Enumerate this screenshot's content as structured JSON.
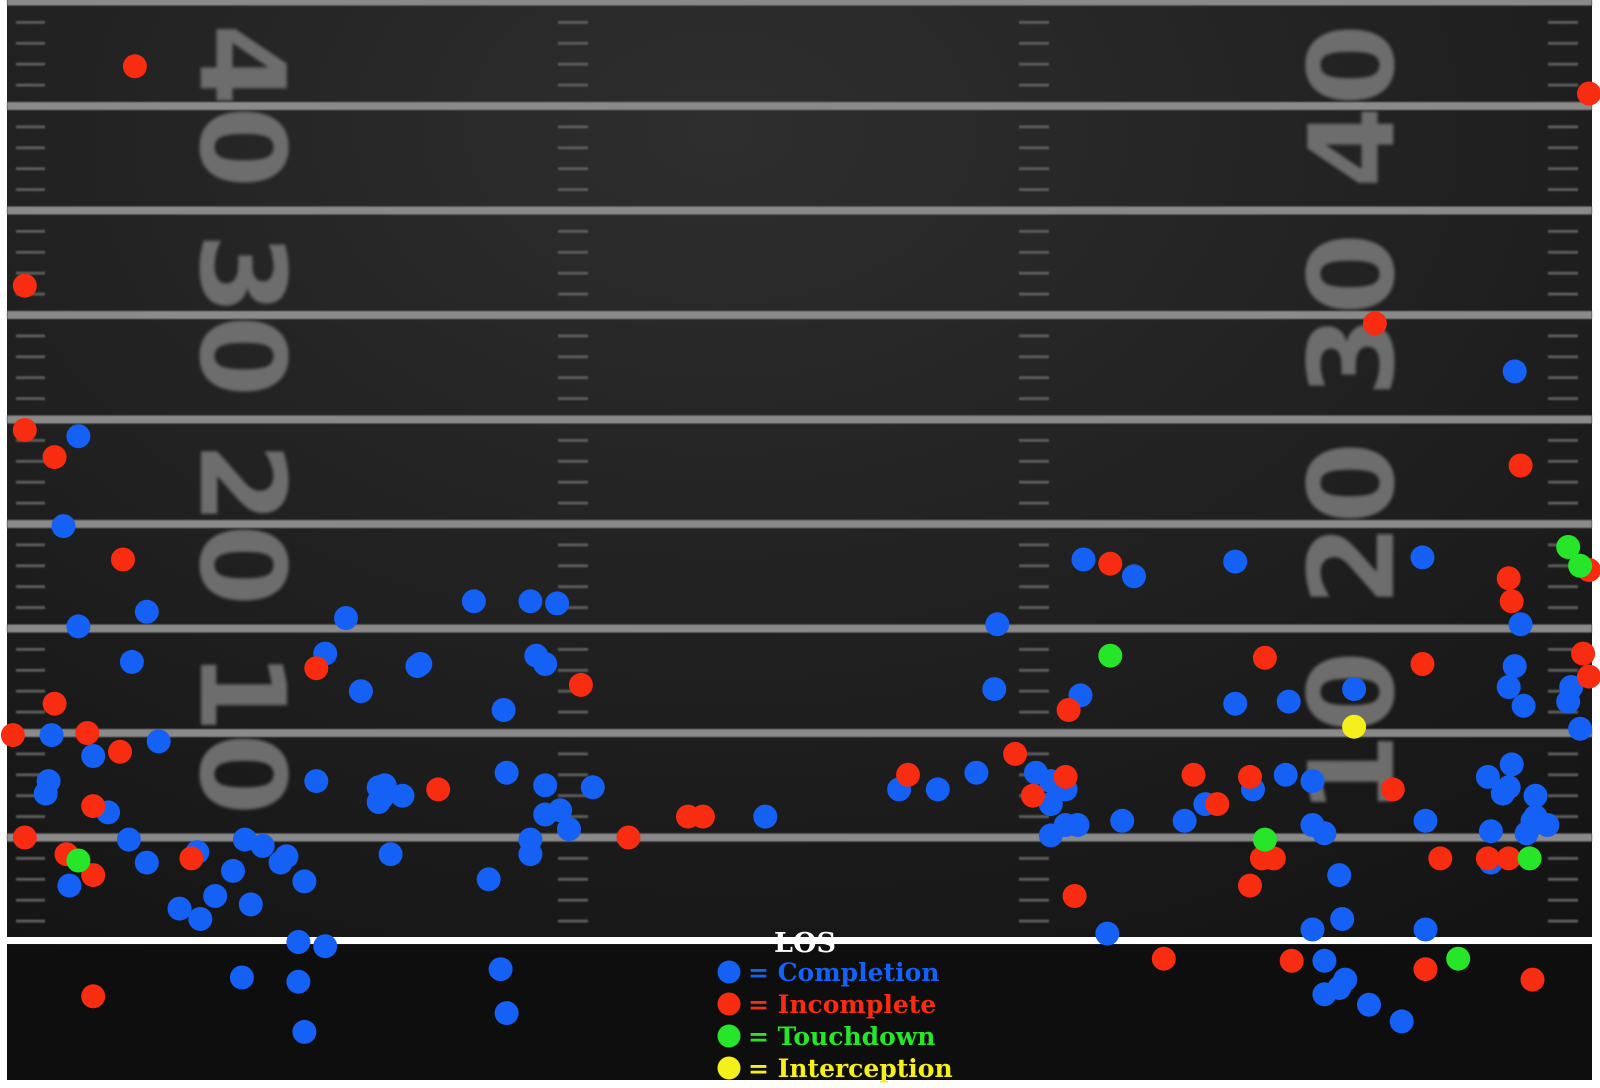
{
  "chart_data": {
    "type": "scatter",
    "title": "",
    "xlabel": "",
    "ylabel": "",
    "xlim": [
      0,
      53.3
    ],
    "ylim": [
      -5,
      45
    ],
    "field_numbers": [
      {
        "label": "40",
        "y": 40
      },
      {
        "label": "30",
        "y": 30
      },
      {
        "label": "20",
        "y": 20
      },
      {
        "label": "10",
        "y": 10
      }
    ],
    "los_label": "LOS",
    "grid": true,
    "legend_position": "bottom-center",
    "colors": {
      "Completion": "#1560f5",
      "Incomplete": "#f72c10",
      "Touchdown": "#27e62a",
      "Interception": "#f5f01c",
      "field": "#1f1f1f",
      "lines": "#8a8a8a",
      "los": "#ffffff"
    },
    "legend": [
      {
        "label": "= Completion",
        "series": "Completion"
      },
      {
        "label": "= Incomplete",
        "series": "Incomplete"
      },
      {
        "label": "= Touchdown",
        "series": "Touchdown"
      },
      {
        "label": "= Interception",
        "series": "Interception"
      }
    ],
    "series": [
      {
        "name": "Completion",
        "points": [
          [
            2.4,
            24.2
          ],
          [
            1.9,
            19.9
          ],
          [
            2.4,
            15.1
          ],
          [
            4.7,
            15.8
          ],
          [
            4.2,
            13.4
          ],
          [
            1.4,
            7.7
          ],
          [
            1.3,
            7.1
          ],
          [
            3.4,
            6.2
          ],
          [
            1.5,
            9.9
          ],
          [
            2.9,
            8.9
          ],
          [
            5.1,
            9.6
          ],
          [
            4.7,
            3.8
          ],
          [
            4.1,
            4.9
          ],
          [
            6.4,
            4.3
          ],
          [
            5.8,
            1.6
          ],
          [
            7.0,
            2.2
          ],
          [
            2.1,
            2.7
          ],
          [
            8.0,
            4.9
          ],
          [
            8.6,
            4.6
          ],
          [
            6.5,
            1.1
          ],
          [
            7.6,
            3.4
          ],
          [
            7.9,
            -1.7
          ],
          [
            9.2,
            3.8
          ],
          [
            8.2,
            1.8
          ],
          [
            9.4,
            4.1
          ],
          [
            10.7,
            13.8
          ],
          [
            11.4,
            15.5
          ],
          [
            10.4,
            7.7
          ],
          [
            10.0,
            2.9
          ],
          [
            9.8,
            -1.9
          ],
          [
            10.7,
            -0.2
          ],
          [
            10.0,
            -4.3
          ],
          [
            12.5,
            7.4
          ],
          [
            12.6,
            6.9
          ],
          [
            13.3,
            7.0
          ],
          [
            12.5,
            6.7
          ],
          [
            12.7,
            7.5
          ],
          [
            13.9,
            13.3
          ],
          [
            11.9,
            12.0
          ],
          [
            9.8,
            0.0
          ],
          [
            12.9,
            4.2
          ],
          [
            13.8,
            13.2
          ],
          [
            15.7,
            16.3
          ],
          [
            17.6,
            16.3
          ],
          [
            18.5,
            16.2
          ],
          [
            17.8,
            13.7
          ],
          [
            18.1,
            13.3
          ],
          [
            16.7,
            11.1
          ],
          [
            16.8,
            8.1
          ],
          [
            16.2,
            3.0
          ],
          [
            17.6,
            4.9
          ],
          [
            18.1,
            7.5
          ],
          [
            18.6,
            6.3
          ],
          [
            19.7,
            7.4
          ],
          [
            18.1,
            6.1
          ],
          [
            18.9,
            5.4
          ],
          [
            17.6,
            4.2
          ],
          [
            16.6,
            -1.3
          ],
          [
            16.8,
            -3.4
          ],
          [
            25.5,
            6.0
          ],
          [
            30.0,
            7.3
          ],
          [
            31.3,
            7.3
          ],
          [
            32.6,
            8.1
          ],
          [
            33.2,
            12.1
          ],
          [
            33.3,
            15.2
          ],
          [
            34.6,
            8.1
          ],
          [
            35.1,
            7.7
          ],
          [
            35.6,
            7.3
          ],
          [
            35.5,
            7.7
          ],
          [
            35.1,
            6.6
          ],
          [
            35.6,
            5.6
          ],
          [
            36.0,
            5.6
          ],
          [
            35.1,
            5.1
          ],
          [
            36.1,
            11.8
          ],
          [
            36.2,
            18.3
          ],
          [
            37.9,
            17.5
          ],
          [
            37.5,
            5.8
          ],
          [
            37.0,
            0.4
          ],
          [
            39.6,
            5.8
          ],
          [
            40.3,
            6.6
          ],
          [
            41.3,
            18.2
          ],
          [
            41.3,
            11.4
          ],
          [
            41.9,
            7.3
          ],
          [
            43.1,
            11.5
          ],
          [
            43.0,
            8.0
          ],
          [
            43.9,
            7.7
          ],
          [
            45.3,
            12.1
          ],
          [
            43.9,
            5.6
          ],
          [
            44.3,
            5.2
          ],
          [
            44.8,
            3.2
          ],
          [
            44.9,
            1.1
          ],
          [
            43.9,
            0.6
          ],
          [
            44.3,
            -0.9
          ],
          [
            45.0,
            -1.8
          ],
          [
            44.8,
            -2.2
          ],
          [
            44.3,
            -2.5
          ],
          [
            45.8,
            -3.0
          ],
          [
            46.9,
            -3.8
          ],
          [
            47.6,
            18.4
          ],
          [
            47.7,
            5.8
          ],
          [
            47.7,
            0.6
          ],
          [
            49.8,
            7.9
          ],
          [
            49.9,
            5.3
          ],
          [
            50.3,
            7.1
          ],
          [
            50.6,
            8.5
          ],
          [
            50.5,
            7.4
          ],
          [
            49.9,
            3.8
          ],
          [
            50.5,
            12.2
          ],
          [
            50.9,
            15.2
          ],
          [
            50.7,
            13.2
          ],
          [
            51.0,
            11.3
          ],
          [
            51.4,
            7.0
          ],
          [
            51.3,
            5.8
          ],
          [
            51.1,
            5.2
          ],
          [
            51.8,
            5.6
          ],
          [
            52.5,
            11.5
          ],
          [
            52.9,
            10.2
          ],
          [
            52.6,
            12.2
          ],
          [
            50.7,
            27.3
          ],
          [
            51.4,
            6.0
          ]
        ]
      },
      {
        "name": "Incomplete",
        "points": [
          [
            4.3,
            41.9
          ],
          [
            0.6,
            31.4
          ],
          [
            0.6,
            24.5
          ],
          [
            1.6,
            23.2
          ],
          [
            3.9,
            18.3
          ],
          [
            1.6,
            11.4
          ],
          [
            2.7,
            10.0
          ],
          [
            3.8,
            9.1
          ],
          [
            2.9,
            6.5
          ],
          [
            0.6,
            5.0
          ],
          [
            2.0,
            4.2
          ],
          [
            2.9,
            3.2
          ],
          [
            6.2,
            4.0
          ],
          [
            10.4,
            13.1
          ],
          [
            14.5,
            7.3
          ],
          [
            0.2,
            9.9
          ],
          [
            2.9,
            -2.6
          ],
          [
            19.3,
            12.3
          ],
          [
            20.9,
            5.0
          ],
          [
            22.9,
            6.0
          ],
          [
            23.4,
            6.0
          ],
          [
            30.3,
            8.0
          ],
          [
            33.9,
            9.0
          ],
          [
            34.5,
            7.0
          ],
          [
            35.6,
            7.9
          ],
          [
            35.7,
            11.1
          ],
          [
            37.1,
            18.1
          ],
          [
            35.9,
            2.2
          ],
          [
            38.9,
            -0.8
          ],
          [
            39.9,
            8.0
          ],
          [
            40.7,
            6.6
          ],
          [
            41.8,
            7.9
          ],
          [
            41.8,
            2.7
          ],
          [
            42.2,
            4.0
          ],
          [
            42.6,
            4.0
          ],
          [
            42.3,
            13.6
          ],
          [
            43.2,
            -0.9
          ],
          [
            46.0,
            29.6
          ],
          [
            46.6,
            7.3
          ],
          [
            47.6,
            13.3
          ],
          [
            47.7,
            -1.3
          ],
          [
            48.2,
            4.0
          ],
          [
            49.8,
            4.0
          ],
          [
            50.5,
            4.0
          ],
          [
            50.5,
            17.4
          ],
          [
            50.6,
            16.3
          ],
          [
            50.9,
            22.8
          ],
          [
            53.2,
            17.8
          ],
          [
            53.0,
            13.8
          ],
          [
            53.2,
            12.7
          ],
          [
            51.3,
            -1.8
          ],
          [
            53.2,
            40.6
          ]
        ]
      },
      {
        "name": "Touchdown",
        "points": [
          [
            2.4,
            3.9
          ],
          [
            37.1,
            13.7
          ],
          [
            42.3,
            4.9
          ],
          [
            48.8,
            -0.8
          ],
          [
            51.2,
            4.0
          ],
          [
            52.5,
            18.9
          ],
          [
            52.9,
            18.0
          ]
        ]
      },
      {
        "name": "Interception",
        "points": [
          [
            45.3,
            10.3
          ]
        ]
      }
    ]
  }
}
